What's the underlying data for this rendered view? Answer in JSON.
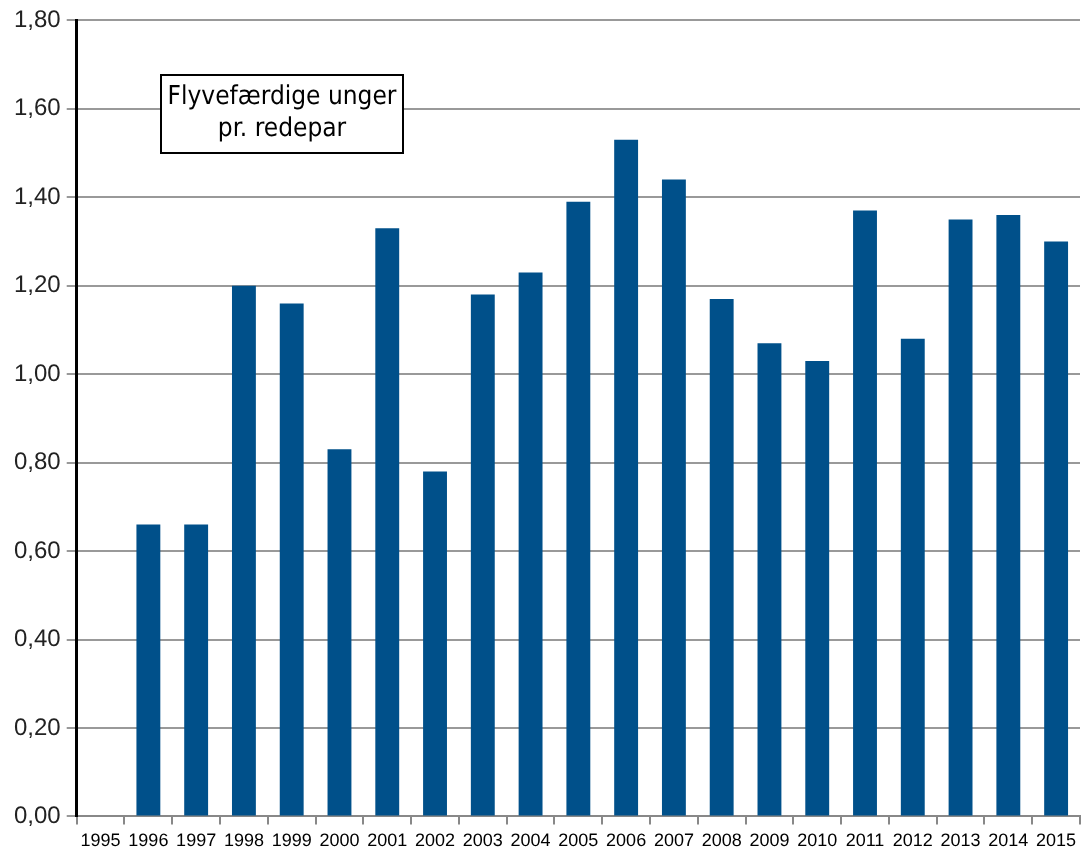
{
  "chart_data": {
    "type": "bar",
    "annotations": [
      "Flyvefærdige unger pr. redepar"
    ],
    "categories": [
      "1995",
      "1996",
      "1997",
      "1998",
      "1999",
      "2000",
      "2001",
      "2002",
      "2003",
      "2004",
      "2005",
      "2006",
      "2007",
      "2008",
      "2009",
      "2010",
      "2011",
      "2012",
      "2013",
      "2014",
      "2015"
    ],
    "values": [
      null,
      0.66,
      0.66,
      1.2,
      1.16,
      0.83,
      1.33,
      0.78,
      1.18,
      1.23,
      1.39,
      1.53,
      1.44,
      1.17,
      1.07,
      1.03,
      1.37,
      1.08,
      1.35,
      1.36,
      1.3
    ],
    "color": "#00508a",
    "ylim": [
      0,
      1.8
    ],
    "yticks": [
      {
        "value": 0,
        "label": "0,00"
      },
      {
        "value": 0.2,
        "label": "0,20"
      },
      {
        "value": 0.4,
        "label": "0,40"
      },
      {
        "value": 0.6,
        "label": "0,60"
      },
      {
        "value": 0.8,
        "label": "0,80"
      },
      {
        "value": 1,
        "label": "1,00"
      },
      {
        "value": 1.2,
        "label": "1,20"
      },
      {
        "value": 1.4,
        "label": "1,40"
      },
      {
        "value": 1.6,
        "label": "1,60"
      },
      {
        "value": 1.8,
        "label": "1,80"
      }
    ],
    "grid": "y"
  }
}
